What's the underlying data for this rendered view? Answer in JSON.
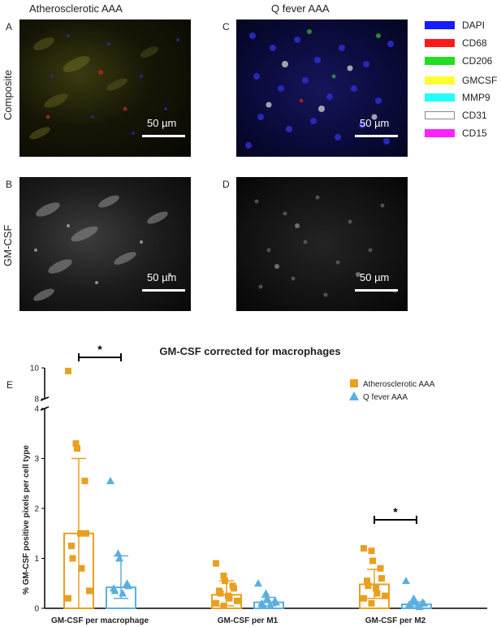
{
  "columns": {
    "left": "Atherosclerotic AAA",
    "right": "Q fever AAA"
  },
  "rows": {
    "top": "Composite",
    "bottom": "GM-CSF"
  },
  "panels": {
    "a": "A",
    "b": "B",
    "c": "C",
    "d": "D",
    "e": "E"
  },
  "scale_bar": "50 µm",
  "stain_legend": [
    {
      "label": "DAPI",
      "color": "#1a1aff"
    },
    {
      "label": "CD68",
      "color": "#ff1a1a"
    },
    {
      "label": "CD206",
      "color": "#22dd22"
    },
    {
      "label": "GMCSF",
      "color": "#ffff33"
    },
    {
      "label": "MMP9",
      "color": "#22ffff"
    },
    {
      "label": "CD31",
      "color": "#ffffff"
    },
    {
      "label": "CD15",
      "color": "#ff22ff"
    }
  ],
  "chart_data": {
    "type": "scatter",
    "title": "GM-CSF corrected for macrophages",
    "ylabel": "% GM-CSF positive pixels per cell type",
    "categories": [
      "GM-CSF per macrophage",
      "GM-CSF per M1",
      "GM-CSF per M2"
    ],
    "y_ticks": [
      "0",
      "1",
      "2",
      "3",
      "4",
      "8",
      "10"
    ],
    "y_axis_break": [
      4,
      8
    ],
    "ylim": [
      0,
      10
    ],
    "significance": [
      {
        "category": "GM-CSF per macrophage",
        "label": "*"
      },
      {
        "category": "GM-CSF per M2",
        "label": "*"
      }
    ],
    "series": [
      {
        "name": "Atherosclerotic AAA",
        "color": "#e8a020",
        "marker": "square",
        "bar_values": [
          1.5,
          0.27,
          0.48
        ],
        "sd_upper": [
          3.0,
          0.55,
          0.78
        ],
        "sd_lower": [
          0.0,
          0.05,
          0.2
        ],
        "points": [
          [
            9.8,
            3.3,
            3.2,
            2.55,
            1.5,
            1.25,
            1.0,
            1.5,
            0.8,
            0.35,
            0.2
          ],
          [
            0.9,
            0.65,
            0.55,
            0.45,
            0.4,
            0.35,
            0.3,
            0.25,
            0.2,
            0.15,
            0.1,
            0.05
          ],
          [
            1.2,
            1.15,
            0.95,
            0.8,
            0.6,
            0.55,
            0.45,
            0.4,
            0.3,
            0.25,
            0.2,
            0.1
          ]
        ]
      },
      {
        "name": "Q fever AAA",
        "color": "#5aafdf",
        "marker": "triangle",
        "bar_values": [
          0.42,
          0.12,
          0.08
        ],
        "sd_upper": [
          1.05,
          0.22,
          0.13
        ],
        "sd_lower": [
          0.2,
          0.05,
          0.04
        ],
        "points": [
          [
            2.55,
            1.1,
            1.0,
            0.5,
            0.45,
            0.4,
            0.35,
            0.3
          ],
          [
            0.5,
            0.3,
            0.2,
            0.15,
            0.12,
            0.1,
            0.08,
            0.05
          ],
          [
            0.55,
            0.2,
            0.15,
            0.12,
            0.1,
            0.08,
            0.06,
            0.05,
            0.03
          ]
        ]
      }
    ]
  }
}
